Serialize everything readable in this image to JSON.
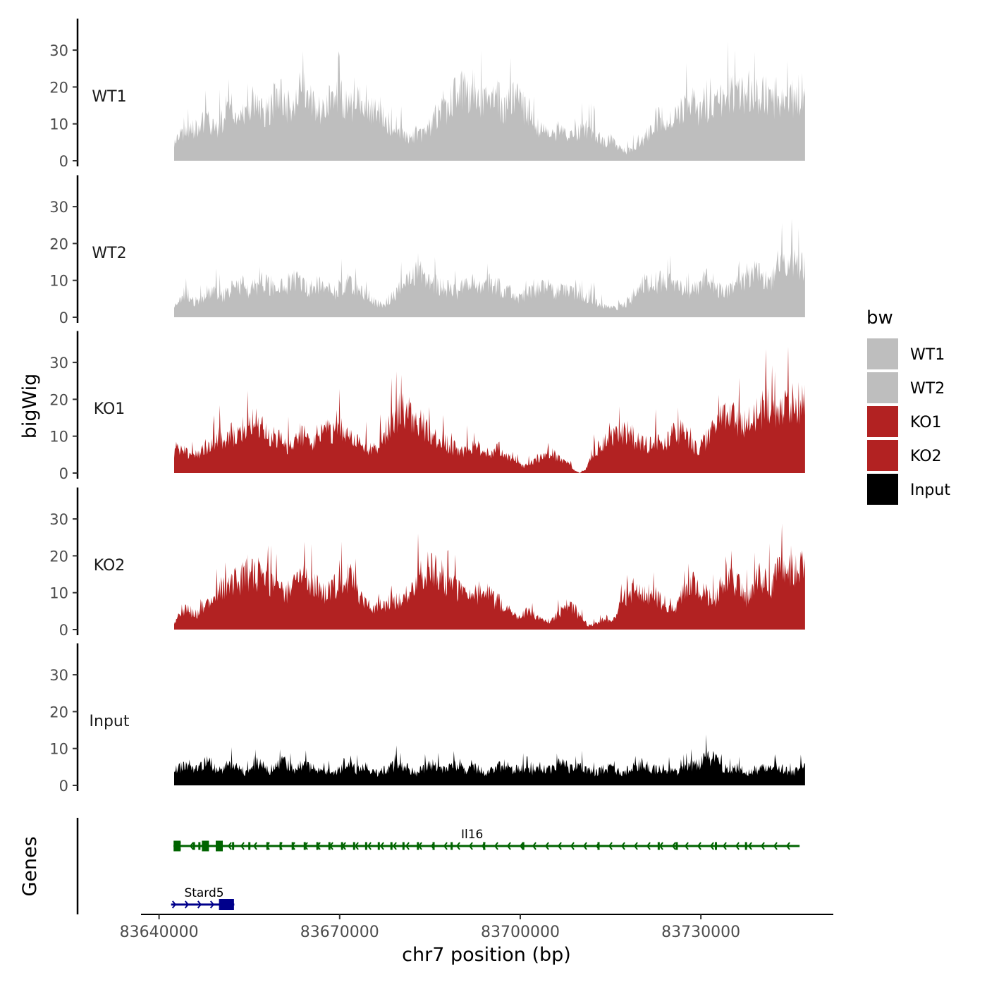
{
  "chart_data": {
    "type": "area",
    "title": "",
    "xlabel": "chr7 position (bp)",
    "ylabel": "bigWig",
    "genes_label": "Genes",
    "xlim": [
      83637000,
      83752000
    ],
    "ylim": [
      0,
      37
    ],
    "x_ticks": [
      83640000,
      83670000,
      83700000,
      83730000
    ],
    "x_tick_labels": [
      "83640000",
      "83670000",
      "83700000",
      "83730000"
    ],
    "y_ticks": [
      0,
      10,
      20,
      30
    ],
    "y_tick_labels": [
      "0",
      "10",
      "20",
      "30"
    ],
    "legend": {
      "title": "bw",
      "placement": "right",
      "entries": [
        {
          "label": "WT1",
          "color": "#bebebe"
        },
        {
          "label": "WT2",
          "color": "#bebebe"
        },
        {
          "label": "KO1",
          "color": "#b22222"
        },
        {
          "label": "KO2",
          "color": "#b22222"
        },
        {
          "label": "Input",
          "color": "#000000"
        }
      ]
    },
    "series": [
      {
        "name": "WT1",
        "color": "#bebebe",
        "x_start": 83642500,
        "x_end": 83747300,
        "values": [
          6,
          9,
          8,
          11,
          10,
          12,
          14,
          12,
          10,
          13,
          15,
          17,
          12,
          14,
          16,
          19,
          18,
          15,
          17,
          20,
          22,
          19,
          17,
          18,
          20,
          23,
          21,
          18,
          16,
          18,
          20,
          22,
          20,
          18,
          17,
          19,
          21,
          18,
          16,
          17,
          14,
          12,
          9,
          10,
          8,
          7,
          9,
          8,
          10,
          12,
          15,
          18,
          17,
          20,
          22,
          23,
          21,
          24,
          21,
          19,
          22,
          21,
          19,
          17,
          20,
          22,
          18,
          16,
          13,
          11,
          10,
          9,
          8,
          10,
          9,
          7,
          8,
          9,
          10,
          11,
          9,
          8,
          6,
          7,
          5,
          4,
          3,
          4,
          5,
          6,
          9,
          12,
          14,
          15,
          13,
          14,
          15,
          17,
          19,
          18,
          16,
          15,
          17,
          18,
          19,
          21,
          22,
          20,
          21,
          23,
          22,
          20,
          22,
          21,
          18,
          17,
          19,
          21,
          20,
          22,
          23
        ]
      },
      {
        "name": "WT2",
        "color": "#bebebe",
        "x_start": 83642500,
        "x_end": 83747300,
        "values": [
          4,
          6,
          7,
          5,
          6,
          8,
          9,
          7,
          8,
          10,
          11,
          9,
          10,
          12,
          11,
          9,
          10,
          11,
          12,
          10,
          9,
          10,
          11,
          9,
          8,
          10,
          11,
          9,
          8,
          7,
          5,
          4,
          6,
          8,
          11,
          13,
          15,
          14,
          12,
          11,
          10,
          9,
          8,
          10,
          11,
          12,
          10,
          11,
          10,
          9,
          8,
          6,
          7,
          8,
          9,
          10,
          9,
          8,
          9,
          8,
          7,
          6,
          7,
          5,
          4,
          3,
          3,
          4,
          6,
          9,
          11,
          12,
          11,
          13,
          12,
          10,
          9,
          8,
          10,
          12,
          11,
          9,
          8,
          9,
          11,
          12,
          13,
          14,
          12,
          13,
          15,
          17,
          19,
          18,
          17
        ]
      },
      {
        "name": "KO1",
        "color": "#b22222",
        "x_start": 83642500,
        "x_end": 83747300,
        "values": [
          6,
          8,
          7,
          5,
          6,
          8,
          9,
          10,
          12,
          11,
          13,
          12,
          14,
          15,
          17,
          16,
          14,
          13,
          12,
          11,
          9,
          10,
          12,
          13,
          11,
          10,
          12,
          14,
          13,
          15,
          14,
          12,
          11,
          10,
          9,
          8,
          9,
          12,
          15,
          18,
          20,
          21,
          19,
          17,
          16,
          14,
          12,
          11,
          10,
          9,
          8,
          7,
          8,
          9,
          8,
          7,
          6,
          7,
          8,
          6,
          5,
          4,
          2,
          3,
          4,
          5,
          6,
          7,
          5,
          4,
          3,
          1,
          0,
          1,
          5,
          8,
          10,
          11,
          12,
          13,
          14,
          12,
          11,
          10,
          9,
          10,
          11,
          10,
          12,
          13,
          14,
          11,
          9,
          8,
          10,
          12,
          15,
          17,
          19,
          18,
          16,
          15,
          17,
          18,
          20,
          22,
          21,
          19,
          20,
          22,
          24,
          23,
          26
        ]
      },
      {
        "name": "KO2",
        "color": "#b22222",
        "x_start": 83642500,
        "x_end": 83747300,
        "values": [
          2,
          5,
          7,
          6,
          5,
          7,
          9,
          11,
          13,
          15,
          14,
          16,
          17,
          18,
          19,
          18,
          17,
          16,
          14,
          13,
          12,
          14,
          15,
          16,
          15,
          14,
          13,
          12,
          14,
          15,
          16,
          17,
          14,
          10,
          8,
          7,
          9,
          8,
          10,
          9,
          8,
          11,
          14,
          17,
          19,
          21,
          20,
          18,
          16,
          14,
          13,
          12,
          10,
          11,
          13,
          12,
          10,
          9,
          8,
          6,
          5,
          4,
          6,
          5,
          4,
          3,
          2,
          4,
          6,
          8,
          7,
          5,
          3,
          1,
          2,
          3,
          4,
          2,
          6,
          10,
          12,
          13,
          12,
          11,
          12,
          10,
          9,
          8,
          7,
          10,
          13,
          15,
          14,
          12,
          11,
          10,
          13,
          16,
          17,
          15,
          12,
          10,
          14,
          17,
          16,
          15,
          18,
          19,
          21,
          20,
          22,
          24
        ]
      },
      {
        "name": "Input",
        "color": "#000000",
        "x_start": 83642500,
        "x_end": 83747300,
        "values": [
          5,
          6,
          7,
          5,
          6,
          8,
          6,
          5,
          7,
          6,
          5,
          4,
          6,
          7,
          5,
          6,
          8,
          6,
          5,
          7,
          6,
          5,
          6,
          4,
          5,
          6,
          7,
          5,
          6,
          5,
          4,
          5,
          6,
          7,
          6,
          5,
          4,
          6,
          7,
          6,
          5,
          6,
          7,
          5,
          6,
          5,
          4,
          5,
          6,
          7,
          5,
          6,
          5,
          4,
          6,
          5,
          6,
          7,
          6,
          5,
          6,
          5,
          4,
          5,
          6,
          5,
          4,
          5,
          6,
          7,
          6,
          5,
          6,
          5,
          4,
          5,
          6,
          7,
          8,
          9,
          8,
          6,
          5,
          6,
          5,
          4,
          5,
          6,
          5,
          6,
          5,
          4,
          5,
          6
        ]
      }
    ],
    "genes": [
      {
        "name": "Il16",
        "color": "#006400",
        "strand": "-",
        "start": 83642400,
        "end": 83746400,
        "exons": [
          83643000,
          83645800,
          83646700,
          83647700,
          83650000,
          83652300,
          83655000,
          83658000,
          83660200,
          83662200,
          83664200,
          83666300,
          83668300,
          83670400,
          83672400,
          83674400,
          83676500,
          83678600,
          83680600,
          83683000,
          83685600,
          83688600,
          83694000,
          83700500,
          83713000,
          83723000,
          83726000,
          83732500,
          83737500
        ]
      },
      {
        "name": "Stard5",
        "color": "#00008b",
        "strand": "+",
        "start": 83642000,
        "end": 83652500,
        "exons": [
          83650600,
          83651800
        ]
      }
    ]
  }
}
